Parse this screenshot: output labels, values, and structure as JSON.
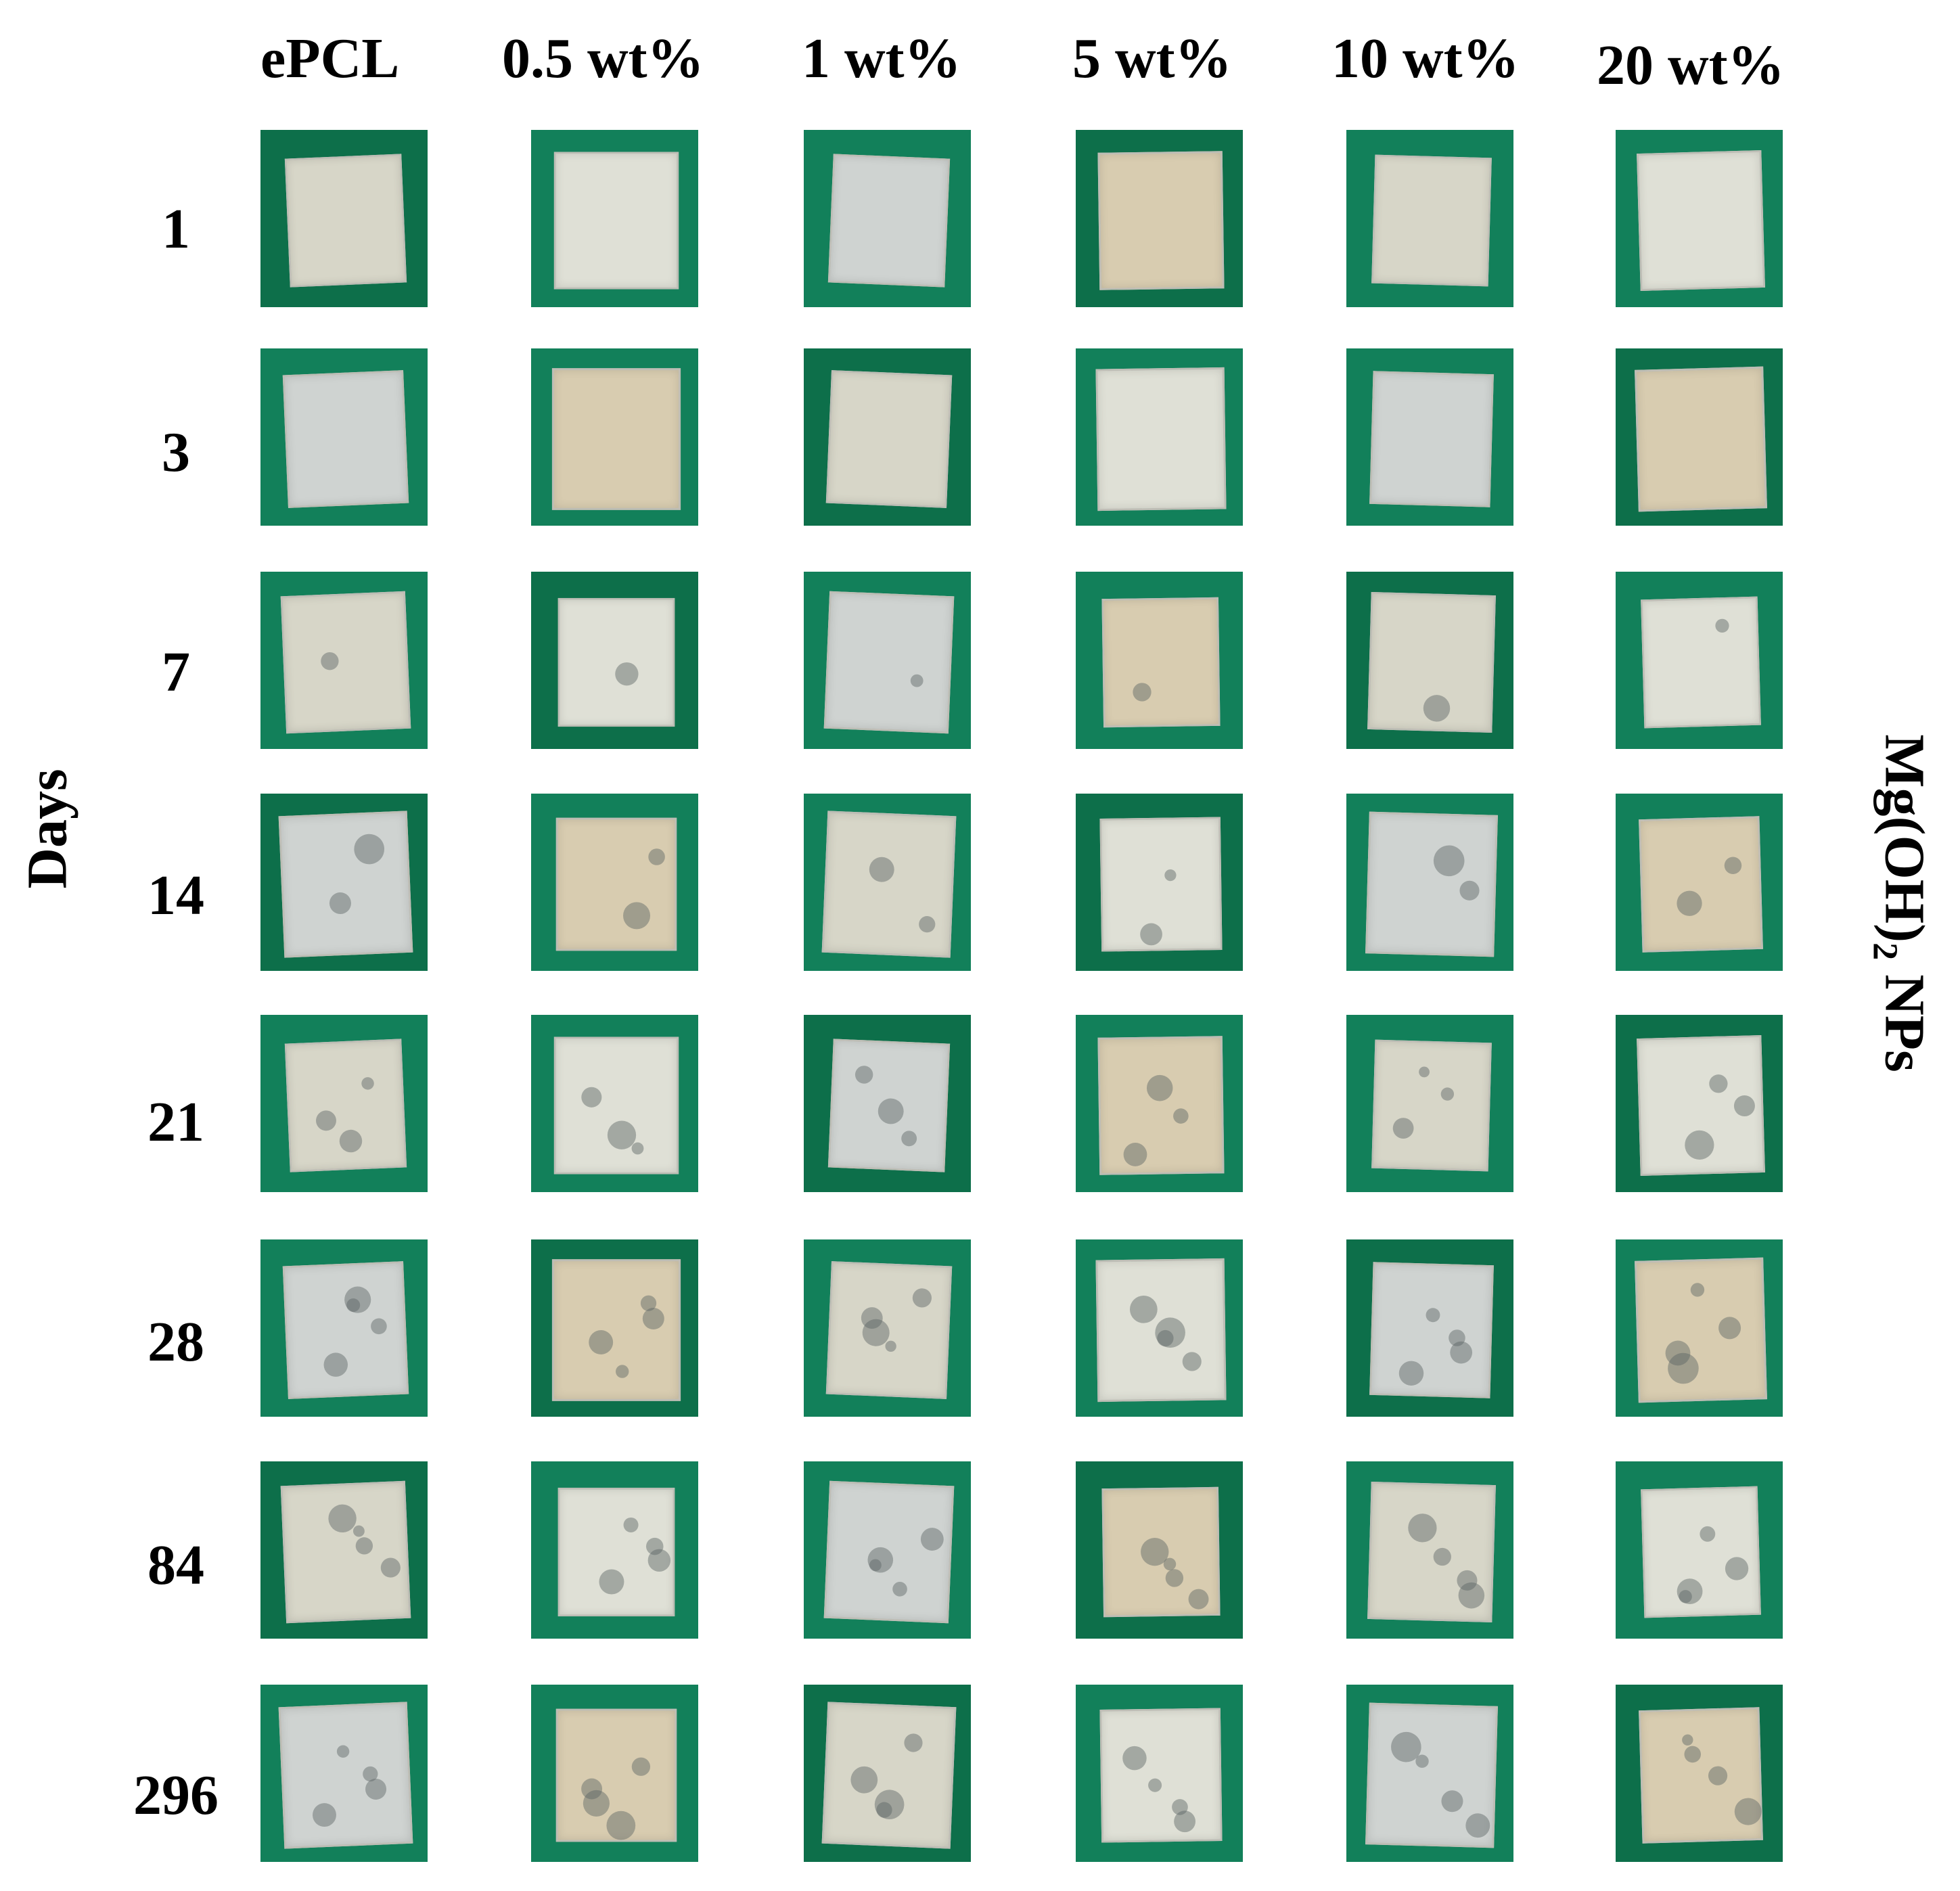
{
  "column_headers": [
    "ePCL",
    "0.5 wt%",
    "1 wt%",
    "5 wt%",
    "10 wt%",
    "20 wt%"
  ],
  "row_headers": [
    "1",
    "3",
    "7",
    "14",
    "21",
    "28",
    "84",
    "296"
  ],
  "y_axis_label": "Days",
  "x_axis_label": {
    "main": "Mg(OH)",
    "subscript": "2",
    "suffix": " NPs"
  },
  "colors": {
    "background": "#ffffff",
    "tile_green": "#12805a",
    "sample": "#d7d6c8",
    "text": "#000000"
  }
}
